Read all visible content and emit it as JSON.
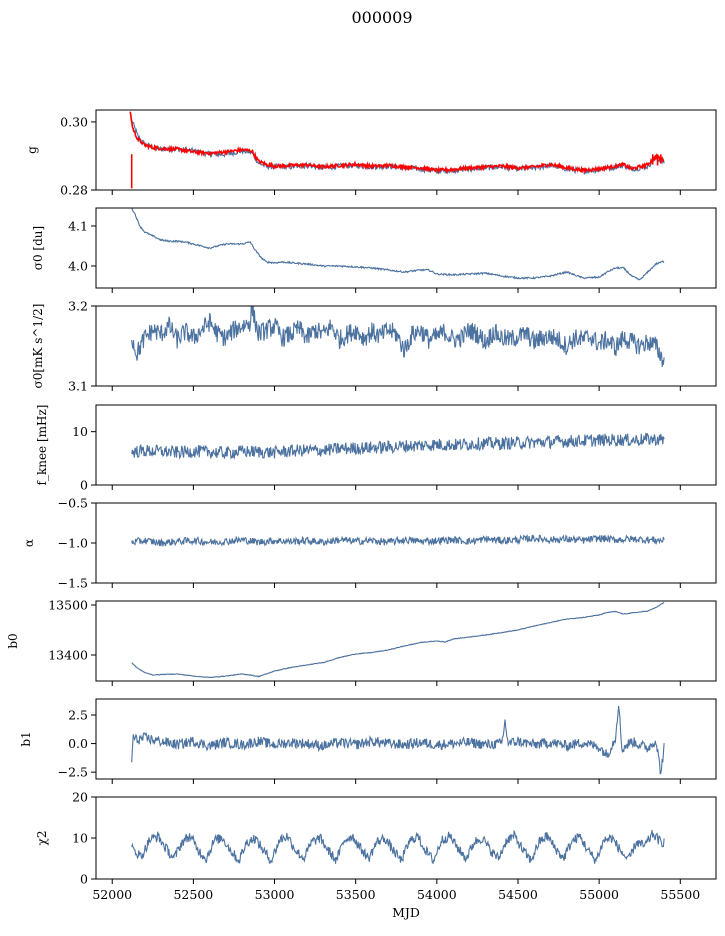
{
  "title": "000009",
  "chart_data": [
    {
      "type": "line",
      "ylabel": "g",
      "ylim": [
        0.28,
        0.3035
      ],
      "yticks": [
        {
          "v": 0.28,
          "label": "0.28"
        },
        {
          "v": 0.3,
          "label": "0.30"
        }
      ],
      "series": [
        {
          "color": "#4c72a0",
          "x": [
            52120,
            52140,
            52160,
            52200,
            52250,
            52300,
            52400,
            52500,
            52600,
            52700,
            52800,
            52860,
            52900,
            52950,
            53000,
            53100,
            53200,
            53300,
            53400,
            53500,
            53600,
            53700,
            53800,
            53900,
            54000,
            54100,
            54200,
            54300,
            54400,
            54500,
            54600,
            54700,
            54800,
            54900,
            55000,
            55100,
            55150,
            55200,
            55250,
            55300,
            55350,
            55400
          ],
          "y": [
            0.3005,
            0.298,
            0.2955,
            0.2935,
            0.2925,
            0.292,
            0.292,
            0.2915,
            0.2905,
            0.2905,
            0.2915,
            0.291,
            0.288,
            0.287,
            0.2868,
            0.2868,
            0.2872,
            0.2865,
            0.287,
            0.2872,
            0.2868,
            0.287,
            0.2865,
            0.2862,
            0.2855,
            0.2858,
            0.2862,
            0.2865,
            0.2868,
            0.2862,
            0.2865,
            0.2872,
            0.2862,
            0.2855,
            0.286,
            0.2868,
            0.2872,
            0.2862,
            0.2865,
            0.287,
            0.2895,
            0.288
          ]
        },
        {
          "color": "#ff0000",
          "x": [
            52110,
            52125,
            52140,
            52160,
            52200,
            52250,
            52300,
            52400,
            52500,
            52600,
            52700,
            52800,
            52860,
            52900,
            52950,
            53000,
            53100,
            53200,
            53300,
            53400,
            53500,
            53600,
            53700,
            53800,
            53900,
            54000,
            54100,
            54200,
            54300,
            54400,
            54500,
            54600,
            54700,
            54800,
            54900,
            55000,
            55100,
            55150,
            55200,
            55250,
            55300,
            55350,
            55400
          ],
          "y": [
            0.3032,
            0.2985,
            0.2965,
            0.2948,
            0.2932,
            0.2925,
            0.2922,
            0.292,
            0.2912,
            0.2908,
            0.2912,
            0.2918,
            0.2915,
            0.2885,
            0.2875,
            0.287,
            0.2872,
            0.2874,
            0.2868,
            0.2872,
            0.2875,
            0.287,
            0.2872,
            0.2868,
            0.2865,
            0.2858,
            0.286,
            0.2865,
            0.2868,
            0.287,
            0.2865,
            0.2868,
            0.2875,
            0.2865,
            0.2858,
            0.2862,
            0.287,
            0.2875,
            0.2862,
            0.2868,
            0.2875,
            0.2898,
            0.2888
          ]
        }
      ]
    },
    {
      "type": "line",
      "ylabel": "σ0 [du]",
      "ylim": [
        3.945,
        4.145
      ],
      "yticks": [
        {
          "v": 4.0,
          "label": "4.0"
        },
        {
          "v": 4.1,
          "label": "4.1"
        }
      ],
      "series": [
        {
          "color": "#4c72a0",
          "x": [
            52120,
            52140,
            52170,
            52200,
            52250,
            52300,
            52350,
            52400,
            52450,
            52500,
            52550,
            52600,
            52650,
            52700,
            52750,
            52800,
            52850,
            52880,
            52920,
            52950,
            53000,
            53050,
            53100,
            53200,
            53300,
            53400,
            53500,
            53600,
            53700,
            53800,
            53900,
            53950,
            54000,
            54100,
            54200,
            54300,
            54400,
            54500,
            54600,
            54700,
            54800,
            54900,
            55000,
            55050,
            55100,
            55150,
            55200,
            55250,
            55300,
            55350,
            55400
          ],
          "y": [
            4.145,
            4.13,
            4.1,
            4.085,
            4.075,
            4.065,
            4.062,
            4.062,
            4.06,
            4.055,
            4.05,
            4.045,
            4.05,
            4.055,
            4.055,
            4.055,
            4.06,
            4.04,
            4.02,
            4.01,
            4.008,
            4.01,
            4.008,
            4.005,
            4.0,
            4.0,
            3.998,
            3.995,
            3.99,
            3.985,
            3.99,
            3.99,
            3.98,
            3.978,
            3.98,
            3.982,
            3.975,
            3.97,
            3.97,
            3.975,
            3.985,
            3.97,
            3.972,
            3.985,
            3.995,
            3.995,
            3.975,
            3.965,
            3.985,
            4.005,
            4.012
          ]
        }
      ]
    },
    {
      "type": "line",
      "ylabel": "σ0[mK s^1/2]",
      "ylim": [
        3.1,
        3.2
      ],
      "yticks": [
        {
          "v": 3.1,
          "label": "3.1"
        },
        {
          "v": 3.2,
          "label": "3.2"
        }
      ],
      "series": [
        {
          "color": "#4c72a0",
          "x": [
            52120,
            52150,
            52200,
            52250,
            52300,
            52350,
            52400,
            52450,
            52500,
            52550,
            52600,
            52650,
            52700,
            52750,
            52800,
            52850,
            52860,
            52900,
            52950,
            53000,
            53050,
            53100,
            53150,
            53200,
            53250,
            53300,
            53350,
            53400,
            53450,
            53500,
            53550,
            53600,
            53650,
            53700,
            53750,
            53800,
            53850,
            53900,
            53950,
            54000,
            54050,
            54100,
            54150,
            54200,
            54250,
            54300,
            54350,
            54400,
            54450,
            54500,
            54550,
            54600,
            54650,
            54700,
            54750,
            54800,
            54850,
            54900,
            54950,
            55000,
            55050,
            55100,
            55150,
            55200,
            55250,
            55300,
            55350,
            55400
          ],
          "y": [
            3.162,
            3.14,
            3.16,
            3.17,
            3.165,
            3.175,
            3.158,
            3.168,
            3.16,
            3.17,
            3.18,
            3.165,
            3.16,
            3.17,
            3.175,
            3.18,
            3.198,
            3.165,
            3.17,
            3.175,
            3.16,
            3.165,
            3.172,
            3.16,
            3.17,
            3.165,
            3.175,
            3.158,
            3.165,
            3.17,
            3.16,
            3.168,
            3.162,
            3.17,
            3.165,
            3.145,
            3.165,
            3.17,
            3.158,
            3.162,
            3.168,
            3.158,
            3.16,
            3.17,
            3.165,
            3.155,
            3.168,
            3.16,
            3.158,
            3.162,
            3.165,
            3.155,
            3.16,
            3.162,
            3.158,
            3.15,
            3.16,
            3.158,
            3.162,
            3.152,
            3.158,
            3.148,
            3.16,
            3.155,
            3.15,
            3.155,
            3.15,
            3.13
          ]
        }
      ]
    },
    {
      "type": "line",
      "ylabel": "f_knee [mHz]",
      "ylim": [
        0,
        15
      ],
      "yticks": [
        {
          "v": 0,
          "label": "0"
        },
        {
          "v": 10,
          "label": "10"
        }
      ],
      "series": [
        {
          "color": "#4c72a0",
          "x": [
            52120,
            52200,
            52300,
            52400,
            52500,
            52600,
            52700,
            52800,
            52900,
            53000,
            53100,
            53200,
            53300,
            53400,
            53500,
            53600,
            53700,
            53800,
            53900,
            54000,
            54100,
            54200,
            54300,
            54400,
            54500,
            54600,
            54700,
            54800,
            54900,
            55000,
            55100,
            55200,
            55300,
            55400
          ],
          "y": [
            6.2,
            6.4,
            6.3,
            6.1,
            6.3,
            6.2,
            6.0,
            6.3,
            6.2,
            6.1,
            6.4,
            6.5,
            6.5,
            6.8,
            6.9,
            7.0,
            7.1,
            7.3,
            7.4,
            7.6,
            7.5,
            7.7,
            7.8,
            7.8,
            7.9,
            8.0,
            8.1,
            8.2,
            8.3,
            8.4,
            8.5,
            8.4,
            8.6,
            8.5
          ]
        }
      ]
    },
    {
      "type": "line",
      "ylabel": "α",
      "ylim": [
        -1.5,
        -0.5
      ],
      "yticks": [
        {
          "v": -1.5,
          "label": "−1.5"
        },
        {
          "v": -1.0,
          "label": "−1.0"
        },
        {
          "v": -0.5,
          "label": "−0.5"
        }
      ],
      "series": [
        {
          "color": "#4c72a0",
          "x": [
            52120,
            52200,
            52300,
            52400,
            52500,
            52600,
            52700,
            52800,
            52900,
            53000,
            53100,
            53200,
            53300,
            53400,
            53500,
            53600,
            53700,
            53800,
            53900,
            54000,
            54100,
            54200,
            54300,
            54400,
            54500,
            54600,
            54700,
            54800,
            54900,
            55000,
            55100,
            55200,
            55300,
            55400
          ],
          "y": [
            -0.99,
            -0.97,
            -1.0,
            -0.98,
            -0.97,
            -0.99,
            -0.98,
            -0.96,
            -0.99,
            -0.97,
            -0.98,
            -0.97,
            -0.99,
            -0.96,
            -0.98,
            -0.97,
            -0.99,
            -0.96,
            -0.98,
            -0.97,
            -0.96,
            -0.98,
            -0.95,
            -0.97,
            -0.96,
            -0.94,
            -0.96,
            -0.95,
            -0.97,
            -0.94,
            -0.96,
            -0.95,
            -0.96,
            -0.97
          ]
        }
      ]
    },
    {
      "type": "line",
      "ylabel": "b0",
      "ylim": [
        13348,
        13508
      ],
      "yticks": [
        {
          "v": 13400,
          "label": "13400"
        },
        {
          "v": 13500,
          "label": "13500"
        }
      ],
      "series": [
        {
          "color": "#4c72a0",
          "x": [
            52120,
            52150,
            52200,
            52250,
            52300,
            52400,
            52500,
            52600,
            52700,
            52800,
            52850,
            52900,
            52950,
            53000,
            53100,
            53200,
            53300,
            53400,
            53500,
            53600,
            53700,
            53800,
            53900,
            54000,
            54050,
            54100,
            54200,
            54300,
            54400,
            54500,
            54600,
            54700,
            54800,
            54900,
            55000,
            55050,
            55100,
            55150,
            55200,
            55250,
            55300,
            55350,
            55400
          ],
          "y": [
            13385,
            13375,
            13365,
            13360,
            13361,
            13362,
            13358,
            13355,
            13358,
            13362,
            13360,
            13357,
            13362,
            13368,
            13375,
            13380,
            13385,
            13395,
            13402,
            13405,
            13410,
            13418,
            13425,
            13428,
            13426,
            13432,
            13436,
            13440,
            13445,
            13450,
            13458,
            13465,
            13472,
            13475,
            13480,
            13485,
            13487,
            13482,
            13484,
            13486,
            13488,
            13495,
            13505
          ]
        }
      ]
    },
    {
      "type": "line",
      "ylabel": "b1",
      "ylim": [
        -3.1,
        3.9
      ],
      "yticks": [
        {
          "v": -2.5,
          "label": "−2.5"
        },
        {
          "v": 0.0,
          "label": "0.0"
        },
        {
          "v": 2.5,
          "label": "2.5"
        }
      ],
      "series": [
        {
          "color": "#4c72a0",
          "x": [
            52120,
            52130,
            52150,
            52200,
            52300,
            52400,
            52500,
            52600,
            52700,
            52800,
            52900,
            53000,
            53100,
            53200,
            53300,
            53400,
            53500,
            53600,
            53700,
            53800,
            53900,
            54000,
            54100,
            54200,
            54300,
            54400,
            54420,
            54440,
            54500,
            54600,
            54700,
            54800,
            54900,
            55000,
            55050,
            55100,
            55120,
            55140,
            55200,
            55300,
            55350,
            55380,
            55400
          ],
          "y": [
            -1.4,
            0.6,
            0.3,
            0.5,
            0.2,
            -0.1,
            0.2,
            -0.2,
            0.1,
            -0.1,
            0.2,
            -0.1,
            0.1,
            0.0,
            -0.2,
            0.1,
            -0.1,
            0.2,
            0.0,
            -0.1,
            0.1,
            -0.1,
            0.0,
            0.1,
            -0.1,
            0.0,
            1.9,
            0.0,
            0.2,
            -0.1,
            0.1,
            -0.2,
            0.1,
            -0.3,
            -1.0,
            0.5,
            3.6,
            -0.5,
            0.2,
            -0.4,
            0.3,
            -2.6,
            -0.3
          ]
        }
      ]
    },
    {
      "type": "line",
      "ylabel": "χ2",
      "ylim": [
        0,
        20
      ],
      "yticks": [
        {
          "v": 0,
          "label": "0"
        },
        {
          "v": 10,
          "label": "10"
        },
        {
          "v": 20,
          "label": "20"
        }
      ],
      "xlabel": "MJD",
      "xticks": [
        52000,
        52500,
        53000,
        53500,
        54000,
        54500,
        55000,
        55500
      ],
      "series": [
        {
          "color": "#4c72a0",
          "x": [
            52120,
            52180,
            52230,
            52280,
            52330,
            52380,
            52430,
            52480,
            52530,
            52580,
            52630,
            52680,
            52730,
            52780,
            52830,
            52880,
            52930,
            52980,
            53030,
            53080,
            53130,
            53180,
            53230,
            53280,
            53330,
            53380,
            53430,
            53480,
            53530,
            53580,
            53630,
            53680,
            53730,
            53780,
            53830,
            53880,
            53930,
            53980,
            54030,
            54080,
            54130,
            54180,
            54230,
            54280,
            54330,
            54380,
            54430,
            54480,
            54530,
            54580,
            54630,
            54680,
            54730,
            54780,
            54830,
            54880,
            54930,
            54980,
            55030,
            55080,
            55130,
            55180,
            55230,
            55280,
            55330,
            55380,
            55400
          ],
          "y": [
            7.5,
            5.5,
            9.5,
            10.5,
            7.5,
            5.0,
            9.0,
            10.5,
            7.0,
            5.0,
            9.5,
            10.0,
            7.0,
            4.5,
            9.0,
            10.0,
            7.0,
            4.5,
            9.5,
            10.5,
            7.0,
            5.0,
            9.0,
            10.0,
            7.0,
            4.5,
            9.5,
            10.5,
            7.5,
            5.0,
            9.0,
            10.0,
            7.0,
            4.5,
            9.0,
            10.5,
            7.0,
            4.5,
            9.5,
            10.5,
            7.5,
            5.0,
            9.0,
            10.0,
            7.0,
            5.0,
            9.5,
            10.5,
            7.0,
            4.5,
            9.0,
            10.5,
            7.5,
            5.0,
            9.0,
            10.5,
            7.0,
            4.5,
            9.5,
            10.0,
            7.0,
            4.5,
            9.0,
            8.0,
            11.0,
            9.0,
            9.0
          ]
        }
      ]
    }
  ]
}
